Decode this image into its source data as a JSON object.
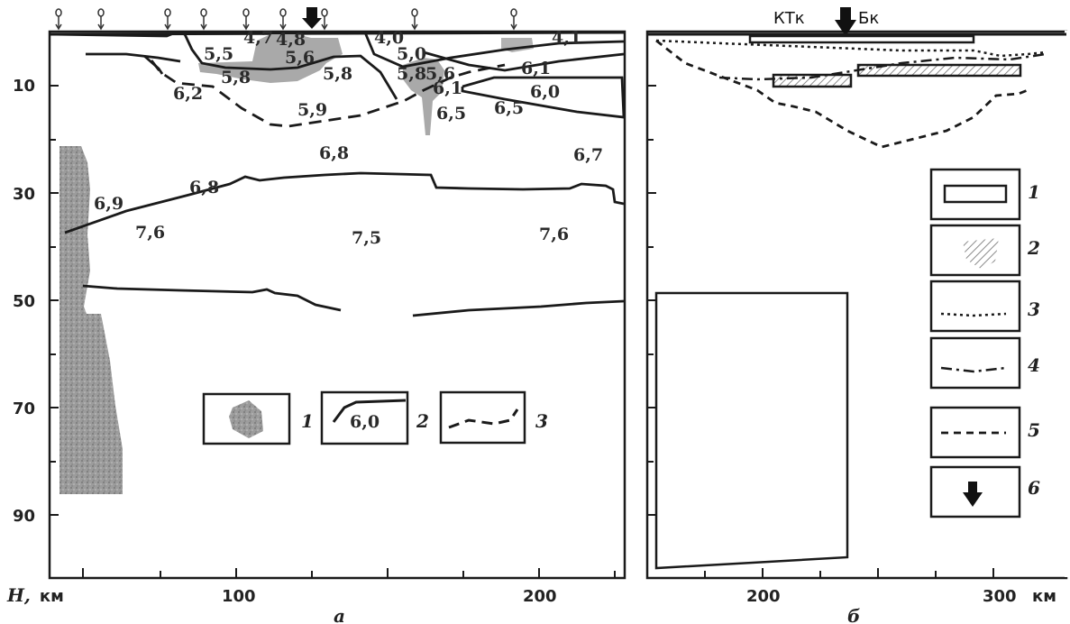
{
  "panel_a": {
    "y_axis_label": "H,",
    "y_axis_unit": "км",
    "y_ticks": [
      "10",
      "30",
      "50",
      "70",
      "90"
    ],
    "x_ticks": [
      "100",
      "200"
    ],
    "caption": "а",
    "velocity_labels": [
      "5,5",
      "5,6",
      "5,8",
      "5,8",
      "5,8",
      "5,0",
      "4,0",
      "4,8",
      "4,7",
      "4,1",
      "5,6",
      "6,1",
      "6,1",
      "6,2",
      "5,9",
      "6,5",
      "6,5",
      "6,0",
      "6,8",
      "6,7",
      "6,9",
      "6,8",
      "7,6",
      "7,5",
      "7,6"
    ],
    "legend": [
      {
        "num": "1",
        "desc": "shaded-body"
      },
      {
        "num": "2",
        "desc": "boundary-line",
        "label": "6,0"
      },
      {
        "num": "3",
        "desc": "dashed-line"
      }
    ]
  },
  "panel_b": {
    "top_labels": [
      "КТк",
      "Бк"
    ],
    "x_ticks": [
      "200",
      "300"
    ],
    "x_unit": "км",
    "caption": "б",
    "legend": [
      "1",
      "2",
      "3",
      "4",
      "5",
      "6"
    ]
  },
  "colors": {
    "ink": "#1a1a1a",
    "shade": "#a9a9a9",
    "hatch": "#8c8c8c"
  }
}
